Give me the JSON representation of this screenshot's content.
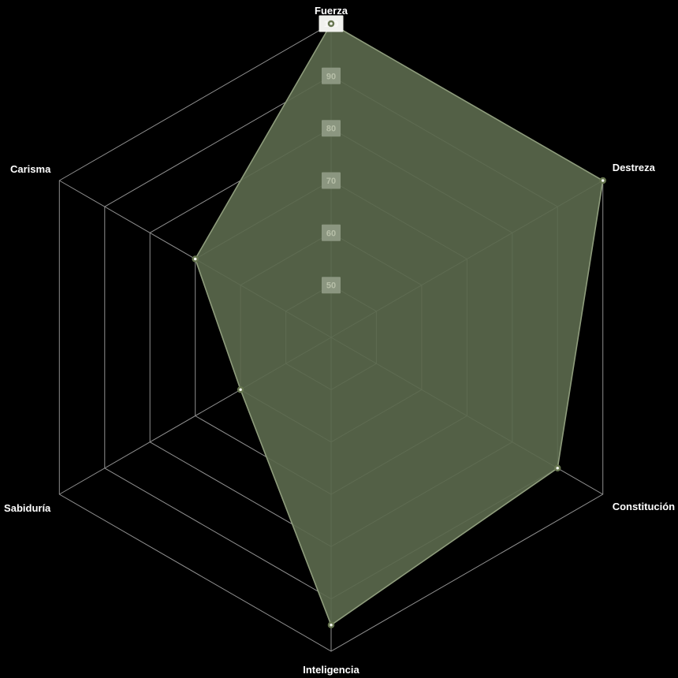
{
  "chart_data": {
    "type": "radar",
    "categories": [
      "Fuerza",
      "Destreza",
      "Constitución",
      "Inteligencia",
      "Sabiduría",
      "Carisma"
    ],
    "values": [
      100,
      100,
      90,
      95,
      60,
      70
    ],
    "scale": {
      "min": 40,
      "max": 100,
      "step": 10,
      "visible_ticks": [
        50,
        60,
        70,
        80,
        90,
        100
      ],
      "tick_labels": [
        "50",
        "60",
        "70",
        "80",
        "90",
        "100"
      ]
    },
    "grid": true,
    "legend": "none",
    "colors": {
      "background": "#000000",
      "grid_line": "#8F8F8F",
      "fill": "#5A684C",
      "fill_opacity": 0.92,
      "border": "#8E9C7C",
      "marker_fill": "#F4F6F0",
      "marker_border": "#66754F",
      "axis_label_text": "#FFFFFF",
      "tick_backdrop": "#8B9680",
      "tick_text": "#B7BFA8",
      "tick_backdrop_top": "#F0F1ED",
      "tick_text_top": "#FAFAF8"
    }
  }
}
